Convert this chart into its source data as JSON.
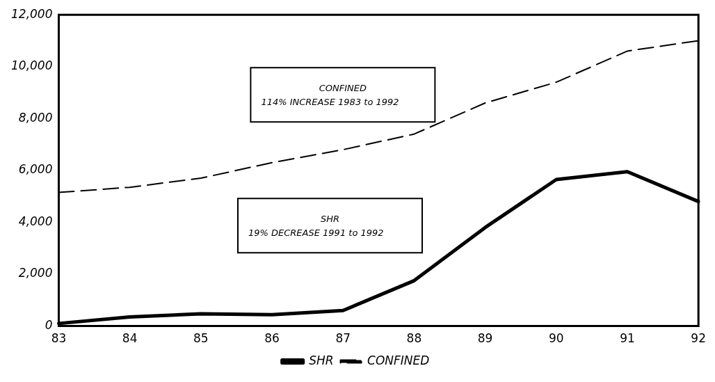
{
  "chart_data": {
    "type": "line",
    "categories": [
      "83",
      "84",
      "85",
      "86",
      "87",
      "88",
      "89",
      "90",
      "91",
      "92"
    ],
    "series": [
      {
        "name": "SHR",
        "color": "#000000",
        "line_style": "solid",
        "values": [
          100,
          350,
          470,
          440,
          600,
          1750,
          3800,
          5650,
          5950,
          4800
        ]
      },
      {
        "name": "CONFINED",
        "color": "#000000",
        "line_style": "dashed",
        "values": [
          5150,
          5350,
          5700,
          6300,
          6800,
          7400,
          8600,
          9400,
          10600,
          11000
        ]
      }
    ],
    "ylim": [
      0,
      12000
    ],
    "yticks": [
      {
        "value": 0,
        "label": "0"
      },
      {
        "value": 2000,
        "label": "2,000"
      },
      {
        "value": 4000,
        "label": "4,000"
      },
      {
        "value": 6000,
        "label": "6,000"
      },
      {
        "value": 8000,
        "label": "8,000"
      },
      {
        "value": 10000,
        "label": "10,000"
      },
      {
        "value": 12000,
        "label": "12,000"
      }
    ],
    "grid": false,
    "legend": "bottom",
    "annotations": [
      "CONFINED\n114% INCREASE 1983 to 1992",
      "SHR\n19% DECREASE 1991 to 1992"
    ]
  }
}
